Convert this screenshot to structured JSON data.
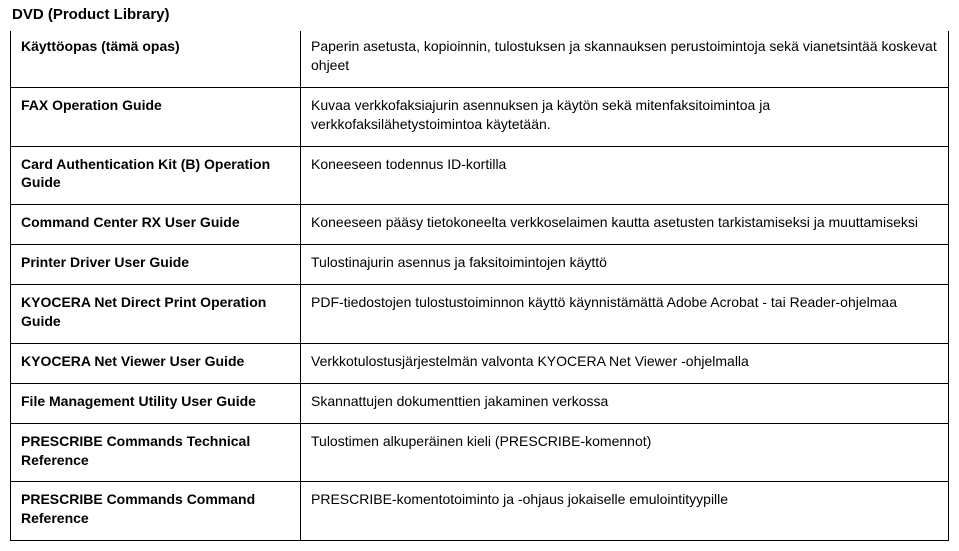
{
  "title": "DVD (Product Library)",
  "rows": [
    {
      "left": "Käyttöopas (tämä opas)",
      "right": "Paperin asetusta, kopioinnin, tulostuksen ja skannauksen perustoimintoja sekä vianetsintää koskevat ohjeet"
    },
    {
      "left": "FAX Operation Guide",
      "right": "Kuvaa verkkofaksiajurin asennuksen ja käytön sekä mitenfaksitoimintoa ja verkkofaksilähetystoimintoa käytetään."
    },
    {
      "left": "Card Authentication Kit (B) Operation Guide",
      "right": "Koneeseen todennus ID-kortilla"
    },
    {
      "left": "Command Center RX User Guide",
      "right": "Koneeseen pääsy tietokoneelta verkkoselaimen kautta asetusten tarkistamiseksi ja muuttamiseksi"
    },
    {
      "left": "Printer Driver User Guide",
      "right": "Tulostinajurin asennus ja faksitoimintojen käyttö"
    },
    {
      "left": "KYOCERA Net Direct Print Operation Guide",
      "right": "PDF-tiedostojen tulostustoiminnon käyttö käynnistämättä Adobe Acrobat - tai Reader-ohjelmaa"
    },
    {
      "left": "KYOCERA Net Viewer User Guide",
      "right": "Verkkotulostusjärjestelmän valvonta KYOCERA Net Viewer -ohjelmalla"
    },
    {
      "left": "File Management Utility User Guide",
      "right": "Skannattujen dokumenttien jakaminen verkossa"
    },
    {
      "left": "PRESCRIBE Commands Technical Reference",
      "right": "Tulostimen alkuperäinen kieli (PRESCRIBE-komennot)"
    },
    {
      "left": "PRESCRIBE Commands Command Reference",
      "right": "PRESCRIBE-komentotoiminto ja -ohjaus jokaiselle emulointityypille"
    }
  ]
}
